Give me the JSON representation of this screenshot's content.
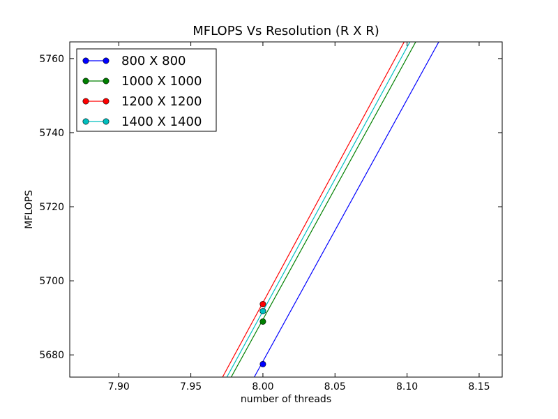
{
  "chart_data": {
    "type": "line",
    "title": "MFLOPS Vs Resolution (R X R)",
    "xlabel": "number of threads",
    "ylabel": "MFLOPS",
    "xlim": [
      7.866,
      8.166
    ],
    "ylim": [
      5674,
      5764.5
    ],
    "x_ticks": [
      "7.90",
      "7.95",
      "8.00",
      "8.05",
      "8.10",
      "8.15"
    ],
    "y_ticks": [
      "5680",
      "5700",
      "5720",
      "5740",
      "5760"
    ],
    "grid": false,
    "legend_position": "top-left",
    "series": [
      {
        "name": "800 X 800",
        "color": "#0000ff",
        "points": [
          [
            8.0,
            5677.5
          ]
        ],
        "line_through": [
          [
            7.994,
            5674
          ],
          [
            8.122,
            5764.5
          ]
        ]
      },
      {
        "name": "1000 X 1000",
        "color": "#008000",
        "points": [
          [
            8.0,
            5689.0
          ]
        ],
        "line_through": [
          [
            7.978,
            5674
          ],
          [
            8.106,
            5764.5
          ]
        ]
      },
      {
        "name": "1200 X 1200",
        "color": "#ff0000",
        "points": [
          [
            8.0,
            5693.7
          ]
        ],
        "line_through": [
          [
            7.972,
            5674
          ],
          [
            8.098,
            5764.5
          ]
        ]
      },
      {
        "name": "1400 X 1400",
        "color": "#00bfbf",
        "points": [
          [
            8.0,
            5691.8
          ]
        ],
        "line_through": [
          [
            7.975,
            5674
          ],
          [
            8.102,
            5764.5
          ]
        ]
      }
    ]
  }
}
